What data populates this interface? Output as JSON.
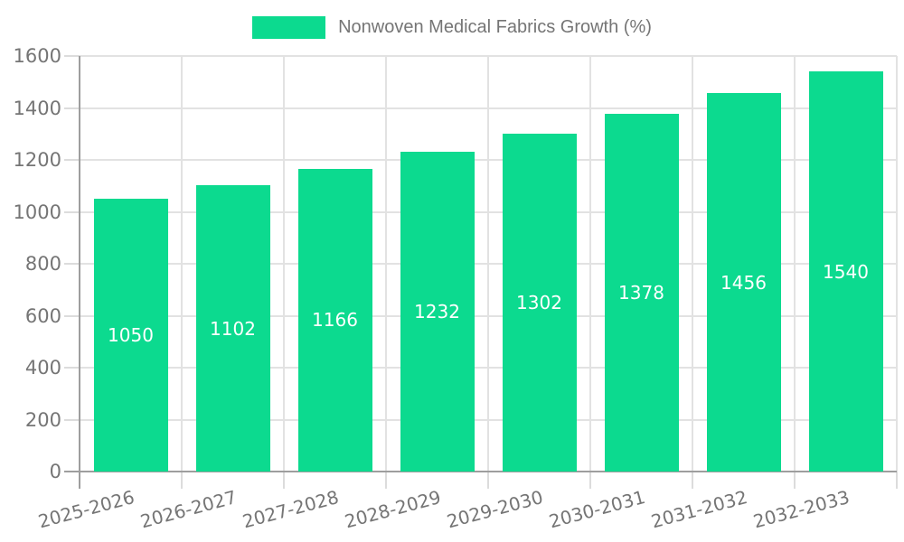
{
  "chart_data": {
    "type": "bar",
    "title": "",
    "legend_label": "Nonwoven Medical Fabrics Growth (%)",
    "legend_position": "top",
    "categories": [
      "2025-2026",
      "2026-2027",
      "2027-2028",
      "2028-2029",
      "2029-2030",
      "2030-2031",
      "2031-2032",
      "2032-2033"
    ],
    "values": [
      1050,
      1102,
      1166,
      1232,
      1302,
      1378,
      1456,
      1540
    ],
    "value_labels": [
      "1050",
      "1102",
      "1166",
      "1232",
      "1302",
      "1378",
      "1456",
      "1540"
    ],
    "xlabel": "",
    "ylabel": "",
    "ylim": [
      0,
      1600
    ],
    "yticks": [
      0,
      200,
      400,
      600,
      800,
      1000,
      1200,
      1400,
      1600
    ],
    "grid": true,
    "x_label_rotation_deg": -15,
    "colors": {
      "bar": "#0CDA8F",
      "value_label": "#ffffff",
      "axis": "#9e9e9e",
      "grid": "#e2e2e2",
      "tick": "#dcdcdc",
      "tick_label": "#757575",
      "legend_text": "#757575",
      "background": "#ffffff"
    }
  }
}
